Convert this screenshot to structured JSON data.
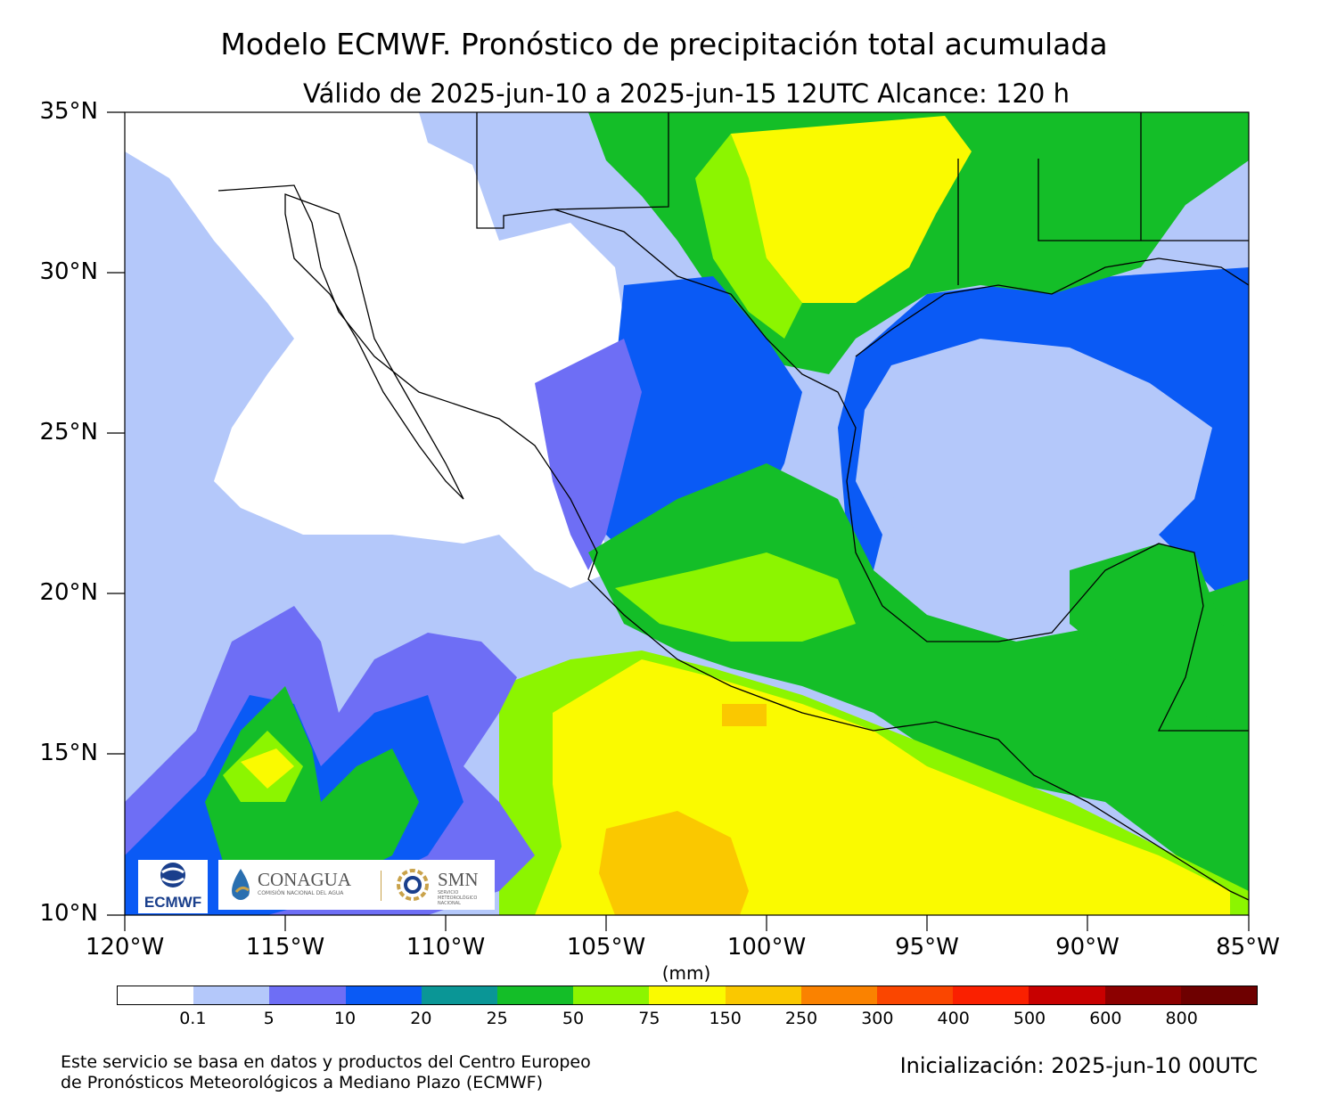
{
  "title": "Modelo ECMWF. Pronóstico de precipitación total acumulada",
  "subtitle": "Válido de 2025-jun-10 a 2025-jun-15 12UTC   Alcance: 120 h",
  "axes": {
    "lat_labels": [
      "35°N",
      "30°N",
      "25°N",
      "20°N",
      "15°N",
      "10°N"
    ],
    "lon_labels": [
      "120°W",
      "115°W",
      "110°W",
      "105°W",
      "100°W",
      "95°W",
      "90°W",
      "85°W"
    ]
  },
  "colorbar": {
    "units": "(mm)",
    "colors": [
      "#ffffff",
      "#b4c8fa",
      "#6e6ef5",
      "#0a5af5",
      "#0a9696",
      "#14be28",
      "#8cf500",
      "#fafa00",
      "#fac800",
      "#fa8200",
      "#fa4600",
      "#fa2000",
      "#c80000",
      "#8c0000",
      "#6e0000"
    ],
    "ticks": [
      "0.1",
      "5",
      "10",
      "20",
      "25",
      "50",
      "75",
      "150",
      "250",
      "300",
      "400",
      "500",
      "600",
      "800"
    ]
  },
  "logos": {
    "ecmwf": "ECMWF",
    "conagua": "CONAGUA",
    "conagua_sub": "COMISIÓN NACIONAL DEL AGUA",
    "smn": "SMN",
    "smn_sub": "SERVICIO METEOROLÓGICO NACIONAL"
  },
  "footer": {
    "credit_line1": "Este servicio se basa en datos y productos del Centro Europeo",
    "credit_line2": "de Pronósticos Meteorológicos a Mediano Plazo (ECMWF)",
    "init": "Inicialización: 2025-jun-10 00UTC"
  }
}
